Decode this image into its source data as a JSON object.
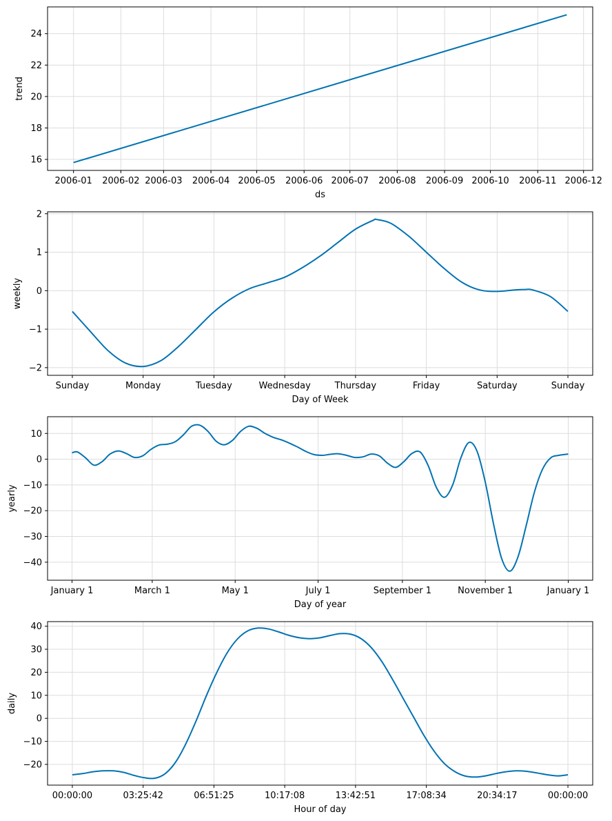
{
  "colors": {
    "line": "#0072B2",
    "grid": "#dcdcdc",
    "axis": "#000000"
  },
  "chart_data": [
    {
      "type": "line",
      "xlabel": "ds",
      "ylabel": "trend",
      "x_ticks": [
        "2006-01",
        "2006-02",
        "2006-03",
        "2006-04",
        "2006-05",
        "2006-06",
        "2006-07",
        "2006-08",
        "2006-09",
        "2006-10",
        "2006-11",
        "2006-12"
      ],
      "y_ticks": [
        16,
        18,
        20,
        22,
        24
      ],
      "ylim": [
        15.3,
        25.7
      ],
      "x_tick_dates": [
        "2006-01-01",
        "2006-02-01",
        "2006-03-01",
        "2006-04-01",
        "2006-05-01",
        "2006-06-01",
        "2006-07-01",
        "2006-08-01",
        "2006-09-01",
        "2006-10-01",
        "2006-11-01",
        "2006-12-01"
      ],
      "xlim_dates": [
        "2005-12-15",
        "2006-12-07"
      ],
      "series": [
        {
          "x": [
            "2006-01-01",
            "2006-11-20"
          ],
          "y": [
            15.8,
            25.2
          ]
        }
      ],
      "grid": true
    },
    {
      "type": "line",
      "xlabel": "Day of Week",
      "ylabel": "weekly",
      "x_ticks": [
        "Sunday",
        "Monday",
        "Tuesday",
        "Wednesday",
        "Thursday",
        "Friday",
        "Saturday",
        "Sunday"
      ],
      "y_ticks": [
        -2,
        -1,
        0,
        1,
        2
      ],
      "xlim": [
        -0.35,
        7.35
      ],
      "ylim": [
        -2.2,
        2.05
      ],
      "series": [
        {
          "x": [
            0,
            0.25,
            0.5,
            0.75,
            1.0,
            1.25,
            1.5,
            1.75,
            2.0,
            2.25,
            2.5,
            2.75,
            3.0,
            3.25,
            3.5,
            3.75,
            4.0,
            4.25,
            4.3,
            4.5,
            4.75,
            5.0,
            5.25,
            5.5,
            5.75,
            6.0,
            6.25,
            6.4,
            6.5,
            6.75,
            7.0
          ],
          "y": [
            -0.54,
            -1.05,
            -1.55,
            -1.88,
            -1.97,
            -1.82,
            -1.45,
            -1.0,
            -0.55,
            -0.2,
            0.05,
            0.2,
            0.35,
            0.6,
            0.9,
            1.25,
            1.6,
            1.83,
            1.85,
            1.75,
            1.42,
            1.0,
            0.58,
            0.22,
            0.02,
            -0.02,
            0.02,
            0.03,
            0.02,
            -0.15,
            -0.54
          ]
        }
      ],
      "grid": true
    },
    {
      "type": "line",
      "xlabel": "Day of year",
      "ylabel": "yearly",
      "x_ticks": [
        "January 1",
        "March 1",
        "May 1",
        "July 1",
        "September 1",
        "November 1",
        "January 1"
      ],
      "x_tick_days": [
        0,
        59,
        120,
        181,
        243,
        304,
        365
      ],
      "y_ticks": [
        10,
        0,
        -10,
        -20,
        -30,
        -40
      ],
      "xlim": [
        -18,
        383
      ],
      "ylim": [
        -47,
        16.5
      ],
      "series": [
        {
          "x": [
            0,
            4,
            10,
            16,
            22,
            28,
            34,
            40,
            46,
            52,
            58,
            64,
            70,
            76,
            82,
            88,
            94,
            100,
            106,
            112,
            118,
            124,
            130,
            136,
            142,
            148,
            154,
            160,
            166,
            172,
            178,
            184,
            190,
            196,
            202,
            208,
            214,
            220,
            226,
            232,
            238,
            244,
            250,
            256,
            262,
            268,
            274,
            280,
            286,
            292,
            298,
            304,
            310,
            316,
            322,
            328,
            334,
            340,
            346,
            352,
            358,
            365
          ],
          "y": [
            2.5,
            2.8,
            0.5,
            -2.3,
            -1.0,
            2.0,
            3.2,
            2.2,
            0.7,
            1.3,
            3.8,
            5.5,
            5.8,
            6.8,
            9.5,
            12.8,
            13.2,
            10.8,
            7.0,
            5.6,
            7.3,
            10.8,
            12.8,
            12.0,
            10.0,
            8.5,
            7.5,
            6.2,
            4.7,
            3.0,
            1.8,
            1.5,
            1.9,
            2.1,
            1.5,
            0.7,
            0.9,
            2.0,
            1.3,
            -1.5,
            -3.2,
            -1.0,
            2.2,
            2.8,
            -2.5,
            -11.0,
            -14.8,
            -10.0,
            0.5,
            6.5,
            3.0,
            -9.0,
            -25.0,
            -38.5,
            -43.5,
            -38.0,
            -26.0,
            -13.0,
            -4.0,
            0.5,
            1.5,
            2.0
          ]
        }
      ],
      "grid": true
    },
    {
      "type": "line",
      "xlabel": "Hour of day",
      "ylabel": "daily",
      "x_ticks": [
        "00:00:00",
        "03:25:42",
        "06:51:25",
        "10:17:08",
        "13:42:51",
        "17:08:34",
        "20:34:17",
        "00:00:00"
      ],
      "x_tick_hours": [
        0,
        3.4286,
        6.8571,
        10.2857,
        13.7143,
        17.1429,
        20.5714,
        24
      ],
      "y_ticks": [
        40,
        30,
        20,
        10,
        0,
        -10,
        -20
      ],
      "xlim": [
        -1.2,
        25.2
      ],
      "ylim": [
        -29,
        42
      ],
      "series": [
        {
          "x": [
            0,
            0.5,
            1.0,
            1.5,
            2.0,
            2.5,
            3.0,
            3.5,
            4.0,
            4.5,
            5.0,
            5.5,
            6.0,
            6.5,
            7.0,
            7.5,
            8.0,
            8.5,
            9.0,
            9.5,
            10.0,
            10.5,
            11.0,
            11.5,
            12.0,
            12.5,
            13.0,
            13.5,
            14.0,
            14.5,
            15.0,
            15.5,
            16.0,
            16.5,
            17.0,
            17.5,
            18.0,
            18.5,
            19.0,
            19.5,
            20.0,
            20.5,
            21.0,
            21.5,
            22.0,
            22.5,
            23.0,
            23.5,
            24.0
          ],
          "y": [
            -24.5,
            -24.0,
            -23.2,
            -22.8,
            -22.8,
            -23.5,
            -24.8,
            -25.8,
            -26.0,
            -24.0,
            -19.0,
            -11.0,
            -1.0,
            10.0,
            20.0,
            28.5,
            34.5,
            38.0,
            39.2,
            38.8,
            37.5,
            36.0,
            35.0,
            34.6,
            35.0,
            36.0,
            36.8,
            36.5,
            34.5,
            30.5,
            24.5,
            17.0,
            9.0,
            1.0,
            -7.0,
            -14.0,
            -19.5,
            -23.0,
            -25.0,
            -25.5,
            -25.0,
            -24.0,
            -23.2,
            -22.8,
            -23.0,
            -23.7,
            -24.5,
            -25.0,
            -24.5
          ]
        }
      ],
      "grid": true
    }
  ]
}
